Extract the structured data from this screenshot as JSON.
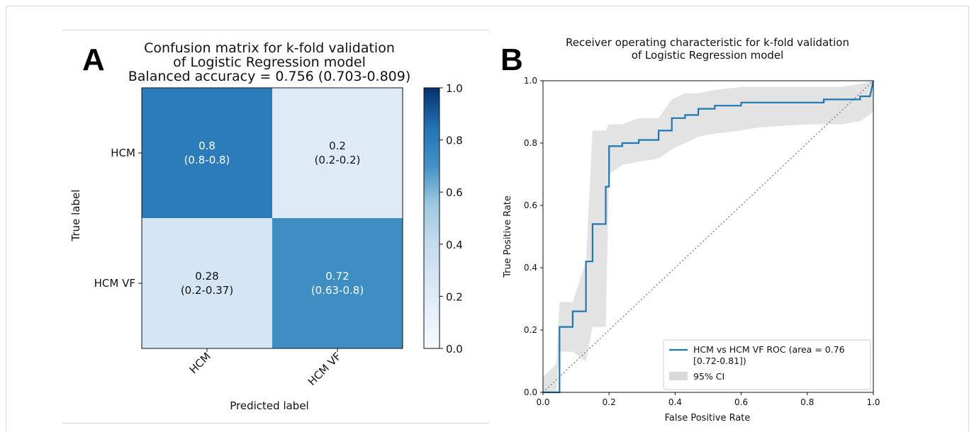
{
  "panel_a": {
    "letter": "A",
    "chart_data": {
      "type": "heatmap",
      "title_lines": [
        "Confusion matrix for k-fold validation",
        "of Logistic Regression model",
        "Balanced accuracy = 0.756 (0.703-0.809)"
      ],
      "xlabel": "Predicted label",
      "ylabel": "True label",
      "x_categories": [
        "HCM",
        "HCM VF"
      ],
      "y_categories": [
        "HCM",
        "HCM VF"
      ],
      "values": [
        [
          0.8,
          0.2
        ],
        [
          0.28,
          0.72
        ]
      ],
      "cell_labels": [
        [
          [
            "0.8",
            "(0.8-0.8)"
          ],
          [
            "0.2",
            "(0.2-0.2)"
          ]
        ],
        [
          [
            "0.28",
            "(0.2-0.37)"
          ],
          [
            "0.72",
            "(0.63-0.8)"
          ]
        ]
      ],
      "colorbar": {
        "range": [
          0.0,
          1.0
        ],
        "ticks": [
          "0.0",
          "0.2",
          "0.4",
          "0.6",
          "0.8",
          "1.0"
        ],
        "colormap": "Blues"
      }
    }
  },
  "panel_b": {
    "letter": "B",
    "chart_data": {
      "type": "line",
      "title_lines": [
        "Receiver operating characteristic for k-fold validation",
        "of Logistic Regression model"
      ],
      "xlabel": "False Positive Rate",
      "ylabel": "True Positive Rate",
      "xlim": [
        0,
        1
      ],
      "ylim": [
        0,
        1
      ],
      "x_ticks": [
        "0.0",
        "0.2",
        "0.4",
        "0.6",
        "0.8",
        "1.0"
      ],
      "y_ticks": [
        "0.0",
        "0.2",
        "0.4",
        "0.6",
        "0.8",
        "1.0"
      ],
      "series": [
        {
          "name": "HCM vs HCM VF ROC (area = 0.76 [0.72-0.81])",
          "color": "#1f77b4",
          "x": [
            0.0,
            0.04,
            0.04,
            0.05,
            0.05,
            0.09,
            0.09,
            0.13,
            0.13,
            0.15,
            0.15,
            0.19,
            0.19,
            0.2,
            0.2,
            0.24,
            0.24,
            0.29,
            0.29,
            0.32,
            0.32,
            0.35,
            0.35,
            0.39,
            0.39,
            0.43,
            0.43,
            0.47,
            0.47,
            0.52,
            0.52,
            0.6,
            0.6,
            0.65,
            0.65,
            0.8,
            0.8,
            0.85,
            0.85,
            0.9,
            0.9,
            0.96,
            0.96,
            0.99,
            0.99,
            1.0
          ],
          "y": [
            0.0,
            0.0,
            0.0,
            0.0,
            0.21,
            0.21,
            0.26,
            0.26,
            0.42,
            0.42,
            0.54,
            0.54,
            0.66,
            0.66,
            0.79,
            0.79,
            0.8,
            0.8,
            0.81,
            0.81,
            0.81,
            0.81,
            0.84,
            0.84,
            0.88,
            0.88,
            0.89,
            0.89,
            0.91,
            0.91,
            0.92,
            0.92,
            0.93,
            0.93,
            0.93,
            0.93,
            0.93,
            0.93,
            0.94,
            0.94,
            0.94,
            0.94,
            0.95,
            0.95,
            0.95,
            1.0
          ]
        }
      ],
      "ci_band": {
        "name": "95% CI",
        "x": [
          0.0,
          0.04,
          0.05,
          0.09,
          0.13,
          0.15,
          0.19,
          0.2,
          0.24,
          0.29,
          0.35,
          0.39,
          0.43,
          0.47,
          0.52,
          0.6,
          0.65,
          0.8,
          0.9,
          0.96,
          1.0
        ],
        "upper": [
          0.05,
          0.09,
          0.29,
          0.29,
          0.42,
          0.84,
          0.84,
          0.86,
          0.86,
          0.88,
          0.88,
          0.94,
          0.96,
          0.96,
          0.97,
          0.98,
          0.98,
          0.98,
          0.98,
          0.99,
          1.0
        ],
        "lower": [
          0.0,
          0.0,
          0.13,
          0.13,
          0.1,
          0.21,
          0.21,
          0.7,
          0.73,
          0.74,
          0.75,
          0.78,
          0.8,
          0.82,
          0.83,
          0.84,
          0.85,
          0.86,
          0.86,
          0.87,
          0.9
        ]
      },
      "reference_line": {
        "style": "dotted",
        "color": "#888888"
      },
      "legend": {
        "placement": "lower-right",
        "entries": [
          "HCM vs HCM VF ROC (area = 0.76",
          "[0.72-0.81])",
          "95% CI"
        ]
      },
      "grid": false
    }
  }
}
